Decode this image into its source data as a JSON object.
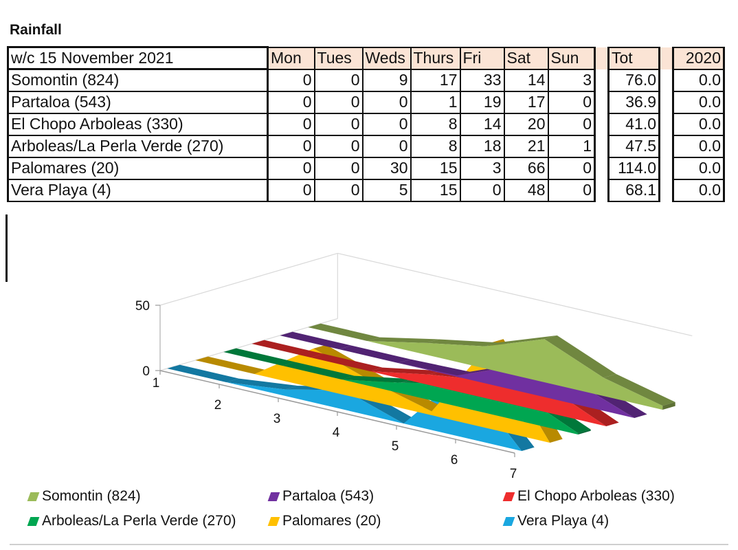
{
  "title": "Rainfall",
  "table": {
    "week_label": "w/c 15 November 2021",
    "days": [
      "Mon",
      "Tues",
      "Weds",
      "Thurs",
      "Fri",
      "Sat",
      "Sun"
    ],
    "tot_label": "Tot",
    "prev_label": "2020",
    "rows": [
      {
        "name": "Somontin (824)",
        "values": [
          "0",
          "0",
          "9",
          "17",
          "33",
          "14",
          "3"
        ],
        "tot": "76.0",
        "prev": "0.0"
      },
      {
        "name": "Partaloa (543)",
        "values": [
          "0",
          "0",
          "0",
          "1",
          "19",
          "17",
          "0"
        ],
        "tot": "36.9",
        "prev": "0.0"
      },
      {
        "name": "El Chopo Arboleas (330)",
        "values": [
          "0",
          "0",
          "0",
          "8",
          "14",
          "20",
          "0"
        ],
        "tot": "41.0",
        "prev": "0.0"
      },
      {
        "name": "Arboleas/La Perla Verde (270)",
        "values": [
          "0",
          "0",
          "0",
          "8",
          "18",
          "21",
          "1"
        ],
        "tot": "47.5",
        "prev": "0.0"
      },
      {
        "name": "Palomares (20)",
        "values": [
          "0",
          "0",
          "30",
          "15",
          "3",
          "66",
          "0"
        ],
        "tot": "114.0",
        "prev": "0.0"
      },
      {
        "name": "Vera Playa (4)",
        "values": [
          "0",
          "0",
          "5",
          "15",
          "0",
          "48",
          "0"
        ],
        "tot": "68.1",
        "prev": "0.0"
      }
    ]
  },
  "chart_data": {
    "type": "area",
    "x": [
      "1",
      "2",
      "3",
      "4",
      "5",
      "6",
      "7"
    ],
    "y_ticks": [
      "0",
      "50"
    ],
    "ylim": [
      0,
      70
    ],
    "legend_position": "bottom",
    "series": [
      {
        "name": "Somontin (824)",
        "values": [
          0,
          0,
          9,
          17,
          33,
          14,
          3
        ],
        "color": "#9bbb59"
      },
      {
        "name": "Partaloa (543)",
        "values": [
          0,
          0,
          0,
          1,
          19,
          17,
          0
        ],
        "color": "#7030a0"
      },
      {
        "name": "El Chopo Arboleas (330)",
        "values": [
          0,
          0,
          0,
          8,
          14,
          20,
          0
        ],
        "color": "#ee2d2d"
      },
      {
        "name": "Arboleas/La Perla Verde (270)",
        "values": [
          0,
          0,
          0,
          8,
          18,
          21,
          1
        ],
        "color": "#00a651"
      },
      {
        "name": "Palomares (20)",
        "values": [
          0,
          0,
          30,
          15,
          3,
          66,
          0
        ],
        "color": "#ffc000"
      },
      {
        "name": "Vera Playa (4)",
        "values": [
          0,
          0,
          5,
          15,
          0,
          48,
          0
        ],
        "color": "#1aa7e0"
      }
    ]
  }
}
